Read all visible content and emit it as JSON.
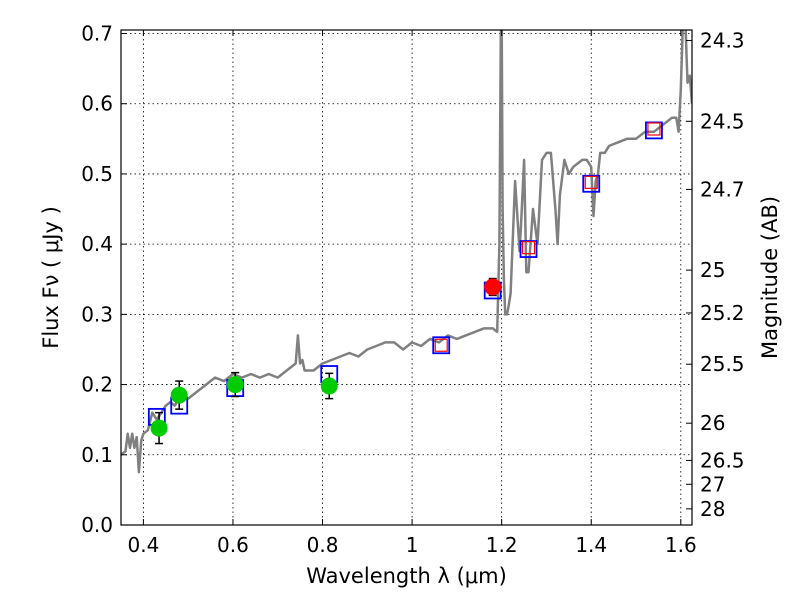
{
  "chart_data": {
    "type": "scatter",
    "xlabel": "Wavelength  λ (μm)",
    "ylabel": "Flux  Fν  ( μJy )",
    "ylabel_right": "Magnitude (AB)",
    "xlim": [
      0.35,
      1.625
    ],
    "ylim": [
      0.0,
      0.705
    ],
    "grid": true,
    "x_ticks": [
      {
        "v": 0.4,
        "label": "0.4"
      },
      {
        "v": 0.6,
        "label": "0.6"
      },
      {
        "v": 0.8,
        "label": "0.8"
      },
      {
        "v": 1.0,
        "label": "1"
      },
      {
        "v": 1.2,
        "label": "1.2"
      },
      {
        "v": 1.4,
        "label": "1.4"
      },
      {
        "v": 1.6,
        "label": "1.6"
      }
    ],
    "y_ticks": [
      {
        "v": 0.0,
        "label": "0.0"
      },
      {
        "v": 0.1,
        "label": "0.1"
      },
      {
        "v": 0.2,
        "label": "0.2"
      },
      {
        "v": 0.3,
        "label": "0.3"
      },
      {
        "v": 0.4,
        "label": "0.4"
      },
      {
        "v": 0.5,
        "label": "0.5"
      },
      {
        "v": 0.6,
        "label": "0.6"
      },
      {
        "v": 0.7,
        "label": "0.7"
      }
    ],
    "right_ticks": [
      {
        "label": "24.3",
        "flux": 0.69
      },
      {
        "label": "24.5",
        "flux": 0.575
      },
      {
        "label": "24.7",
        "flux": 0.478
      },
      {
        "label": "25",
        "flux": 0.363
      },
      {
        "label": "25.2",
        "flux": 0.302
      },
      {
        "label": "25.5",
        "flux": 0.229
      },
      {
        "label": "26",
        "flux": 0.145
      },
      {
        "label": "26.5",
        "flux": 0.092
      },
      {
        "label": "27",
        "flux": 0.058
      },
      {
        "label": "28",
        "flux": 0.023
      }
    ],
    "series": [
      {
        "name": "model spectrum",
        "kind": "line",
        "color": "#808080",
        "x": [
          0.35,
          0.36,
          0.365,
          0.37,
          0.375,
          0.38,
          0.385,
          0.39,
          0.395,
          0.4,
          0.41,
          0.42,
          0.43,
          0.44,
          0.45,
          0.46,
          0.47,
          0.48,
          0.49,
          0.5,
          0.52,
          0.54,
          0.56,
          0.58,
          0.6,
          0.62,
          0.64,
          0.66,
          0.68,
          0.7,
          0.72,
          0.74,
          0.745,
          0.75,
          0.755,
          0.76,
          0.78,
          0.8,
          0.82,
          0.84,
          0.86,
          0.88,
          0.9,
          0.92,
          0.94,
          0.96,
          0.98,
          1.0,
          1.02,
          1.04,
          1.06,
          1.08,
          1.1,
          1.12,
          1.14,
          1.16,
          1.18,
          1.19,
          1.195,
          1.198,
          1.2,
          1.202,
          1.205,
          1.208,
          1.212,
          1.215,
          1.22,
          1.23,
          1.24,
          1.245,
          1.25,
          1.255,
          1.26,
          1.27,
          1.28,
          1.29,
          1.3,
          1.31,
          1.32,
          1.325,
          1.33,
          1.34,
          1.35,
          1.36,
          1.37,
          1.38,
          1.39,
          1.4,
          1.405,
          1.41,
          1.415,
          1.42,
          1.43,
          1.44,
          1.46,
          1.48,
          1.5,
          1.52,
          1.54,
          1.56,
          1.58,
          1.59,
          1.595,
          1.6,
          1.605,
          1.61,
          1.615,
          1.62,
          1.625
        ],
        "y": [
          0.1,
          0.105,
          0.13,
          0.11,
          0.13,
          0.11,
          0.125,
          0.075,
          0.12,
          0.13,
          0.135,
          0.16,
          0.15,
          0.16,
          0.17,
          0.175,
          0.17,
          0.18,
          0.185,
          0.18,
          0.19,
          0.2,
          0.21,
          0.205,
          0.215,
          0.21,
          0.215,
          0.21,
          0.215,
          0.21,
          0.22,
          0.23,
          0.27,
          0.23,
          0.235,
          0.22,
          0.22,
          0.23,
          0.235,
          0.24,
          0.245,
          0.24,
          0.25,
          0.255,
          0.26,
          0.26,
          0.25,
          0.26,
          0.255,
          0.265,
          0.26,
          0.27,
          0.265,
          0.27,
          0.275,
          0.28,
          0.28,
          0.275,
          0.4,
          0.7,
          0.72,
          0.45,
          0.35,
          0.3,
          0.3,
          0.31,
          0.33,
          0.49,
          0.39,
          0.45,
          0.52,
          0.36,
          0.36,
          0.45,
          0.4,
          0.52,
          0.53,
          0.53,
          0.45,
          0.4,
          0.47,
          0.52,
          0.5,
          0.51,
          0.515,
          0.52,
          0.52,
          0.51,
          0.44,
          0.49,
          0.5,
          0.53,
          0.53,
          0.54,
          0.545,
          0.55,
          0.55,
          0.56,
          0.56,
          0.57,
          0.58,
          0.58,
          0.56,
          0.62,
          0.72,
          0.72,
          0.63,
          0.64,
          0.6
        ]
      },
      {
        "name": "model photometry (blue squares)",
        "kind": "square",
        "color": "#0000ff",
        "x": [
          0.43,
          0.48,
          0.605,
          0.815,
          1.065,
          1.18,
          1.26,
          1.4,
          1.54
        ],
        "y": [
          0.154,
          0.17,
          0.195,
          0.215,
          0.256,
          0.334,
          0.393,
          0.486,
          0.562
        ]
      },
      {
        "name": "predicted photometry (red squares)",
        "kind": "square_small",
        "color": "#ff0000",
        "x": [
          1.065,
          1.26,
          1.4,
          1.54
        ],
        "y": [
          0.256,
          0.395,
          0.488,
          0.564
        ]
      },
      {
        "name": "observed photometry (green)",
        "kind": "point_err",
        "color": "#00cc00",
        "x": [
          0.435,
          0.48,
          0.605,
          0.815
        ],
        "y": [
          0.138,
          0.185,
          0.2,
          0.198
        ],
        "err": [
          0.022,
          0.02,
          0.017,
          0.018
        ]
      },
      {
        "name": "observed photometry (red)",
        "kind": "point_err",
        "color": "#ff0000",
        "x": [
          1.18
        ],
        "y": [
          0.339
        ],
        "err": [
          0.012
        ]
      }
    ]
  }
}
